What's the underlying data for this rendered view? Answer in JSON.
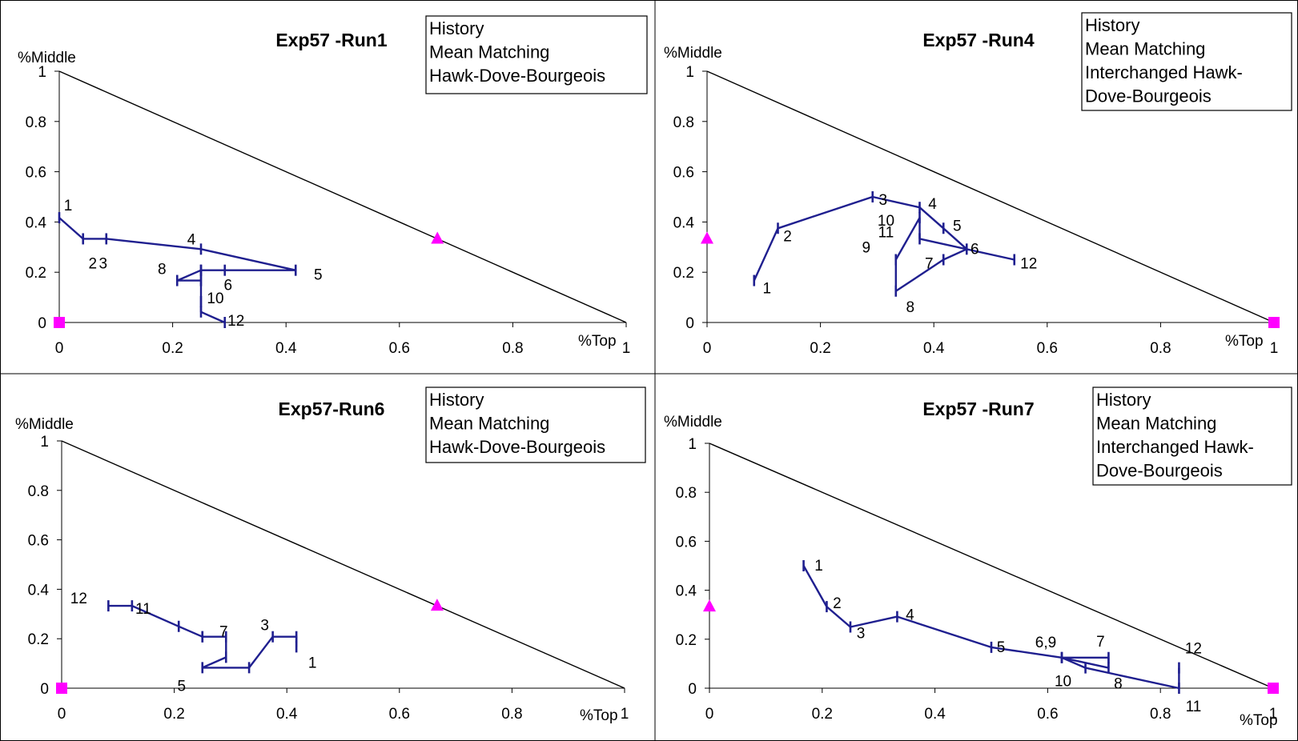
{
  "colors": {
    "series": "#1f1f8f",
    "markers": "#ff00ff",
    "axis": "#000000",
    "box": "#000000"
  },
  "chart_data": [
    {
      "type": "line",
      "title": "Exp57 -Run1",
      "xlabel": "%Top",
      "ylabel": "%Middle",
      "xlim": [
        0,
        1
      ],
      "ylim": [
        0,
        1
      ],
      "xticks": [
        "0",
        "0.2",
        "0.4",
        "0.6",
        "0.8",
        "1"
      ],
      "yticks": [
        "0",
        "0.2",
        "0.4",
        "0.6",
        "0.8",
        "1"
      ],
      "legend": [
        "History",
        "Mean Matching",
        "Hawk-Dove-Bourgeois"
      ],
      "series": [
        {
          "points": [
            {
              "x": 0.0,
              "y": 0.417,
              "label": "1"
            },
            {
              "x": 0.042,
              "y": 0.333,
              "label": "2"
            },
            {
              "x": 0.083,
              "y": 0.333,
              "label": "3"
            },
            {
              "x": 0.25,
              "y": 0.292,
              "label": "4"
            },
            {
              "x": 0.417,
              "y": 0.208,
              "label": "5"
            },
            {
              "x": 0.292,
              "y": 0.208,
              "label": "6"
            },
            {
              "x": 0.25,
              "y": 0.208,
              "label": ""
            },
            {
              "x": 0.25,
              "y": 0.167,
              "label": ""
            },
            {
              "x": 0.208,
              "y": 0.167,
              "label": "8"
            },
            {
              "x": 0.25,
              "y": 0.208,
              "label": ""
            },
            {
              "x": 0.25,
              "y": 0.083,
              "label": "10"
            },
            {
              "x": 0.25,
              "y": 0.042,
              "label": ""
            },
            {
              "x": 0.292,
              "y": 0.0,
              "label": "12"
            }
          ]
        }
      ],
      "markers": [
        {
          "shape": "triangle",
          "x": 0.667,
          "y": 0.333
        },
        {
          "shape": "square",
          "x": 0,
          "y": 0
        }
      ]
    },
    {
      "type": "line",
      "title": "Exp57 -Run4",
      "xlabel": "%Top",
      "ylabel": "%Middle",
      "xlim": [
        0,
        1
      ],
      "ylim": [
        0,
        1
      ],
      "xticks": [
        "0",
        "0.2",
        "0.4",
        "0.6",
        "0.8",
        "1"
      ],
      "yticks": [
        "0",
        "0.2",
        "0.4",
        "0.6",
        "0.8",
        "1"
      ],
      "legend": [
        "History",
        "Mean Matching",
        "Interchanged Hawk-",
        "Dove-Bourgeois"
      ],
      "series": [
        {
          "points": [
            {
              "x": 0.083,
              "y": 0.167,
              "label": "1"
            },
            {
              "x": 0.125,
              "y": 0.375,
              "label": "2"
            },
            {
              "x": 0.292,
              "y": 0.5,
              "label": "3"
            },
            {
              "x": 0.375,
              "y": 0.458,
              "label": "4"
            },
            {
              "x": 0.417,
              "y": 0.375,
              "label": "5"
            },
            {
              "x": 0.458,
              "y": 0.292,
              "label": "6"
            },
            {
              "x": 0.417,
              "y": 0.25,
              "label": "7"
            },
            {
              "x": 0.333,
              "y": 0.125,
              "label": "8"
            },
            {
              "x": 0.333,
              "y": 0.25,
              "label": "9"
            },
            {
              "x": 0.375,
              "y": 0.417,
              "label": "10"
            },
            {
              "x": 0.375,
              "y": 0.333,
              "label": "11"
            },
            {
              "x": 0.542,
              "y": 0.25,
              "label": "12"
            }
          ]
        }
      ],
      "markers": [
        {
          "shape": "triangle",
          "x": 0,
          "y": 0.333
        },
        {
          "shape": "square",
          "x": 1,
          "y": 0
        }
      ]
    },
    {
      "type": "line",
      "title": "Exp57-Run6",
      "xlabel": "%Top",
      "ylabel": "%Middle",
      "xlim": [
        0,
        1
      ],
      "ylim": [
        0,
        1
      ],
      "xticks": [
        "0",
        "0.2",
        "0.4",
        "0.6",
        "0.8",
        "1"
      ],
      "yticks": [
        "0",
        "0.2",
        "0.4",
        "0.6",
        "0.8",
        "1"
      ],
      "legend": [
        "History",
        "Mean Matching",
        "Hawk-Dove-Bourgeois"
      ],
      "series": [
        {
          "points": [
            {
              "x": 0.417,
              "y": 0.167,
              "label": "1"
            },
            {
              "x": 0.417,
              "y": 0.208,
              "label": ""
            },
            {
              "x": 0.375,
              "y": 0.208,
              "label": "3"
            },
            {
              "x": 0.333,
              "y": 0.083,
              "label": ""
            },
            {
              "x": 0.25,
              "y": 0.083,
              "label": "5"
            },
            {
              "x": 0.292,
              "y": 0.125,
              "label": ""
            },
            {
              "x": 0.292,
              "y": 0.208,
              "label": "7"
            },
            {
              "x": 0.25,
              "y": 0.208,
              "label": ""
            },
            {
              "x": 0.25,
              "y": 0.208,
              "label": ""
            },
            {
              "x": 0.208,
              "y": 0.25,
              "label": ""
            },
            {
              "x": 0.125,
              "y": 0.333,
              "label": "11"
            },
            {
              "x": 0.083,
              "y": 0.333,
              "label": "12"
            }
          ]
        }
      ],
      "markers": [
        {
          "shape": "triangle",
          "x": 0.667,
          "y": 0.333
        },
        {
          "shape": "square",
          "x": 0,
          "y": 0
        }
      ]
    },
    {
      "type": "line",
      "title": "Exp57 -Run7",
      "xlabel": "%Top",
      "ylabel": "%Middle",
      "xlim": [
        0,
        1
      ],
      "ylim": [
        0,
        1
      ],
      "xticks": [
        "0",
        "0.2",
        "0.4",
        "0.6",
        "0.8",
        "1"
      ],
      "yticks": [
        "0",
        "0.2",
        "0.4",
        "0.6",
        "0.8",
        "1"
      ],
      "legend": [
        "History",
        "Mean Matching",
        "Interchanged Hawk-",
        "Dove-Bourgeois"
      ],
      "series": [
        {
          "points": [
            {
              "x": 0.167,
              "y": 0.5,
              "label": "1"
            },
            {
              "x": 0.208,
              "y": 0.333,
              "label": "2"
            },
            {
              "x": 0.25,
              "y": 0.25,
              "label": "3"
            },
            {
              "x": 0.333,
              "y": 0.292,
              "label": "4"
            },
            {
              "x": 0.5,
              "y": 0.167,
              "label": "5"
            },
            {
              "x": 0.625,
              "y": 0.125,
              "label": "6,9"
            },
            {
              "x": 0.708,
              "y": 0.125,
              "label": "7"
            },
            {
              "x": 0.708,
              "y": 0.083,
              "label": "8"
            },
            {
              "x": 0.625,
              "y": 0.125,
              "label": ""
            },
            {
              "x": 0.667,
              "y": 0.083,
              "label": "10"
            },
            {
              "x": 0.833,
              "y": 0.0,
              "label": "11"
            },
            {
              "x": 0.833,
              "y": 0.083,
              "label": "12"
            }
          ]
        }
      ],
      "markers": [
        {
          "shape": "triangle",
          "x": 0,
          "y": 0.333
        },
        {
          "shape": "square",
          "x": 1,
          "y": 0
        }
      ]
    }
  ]
}
